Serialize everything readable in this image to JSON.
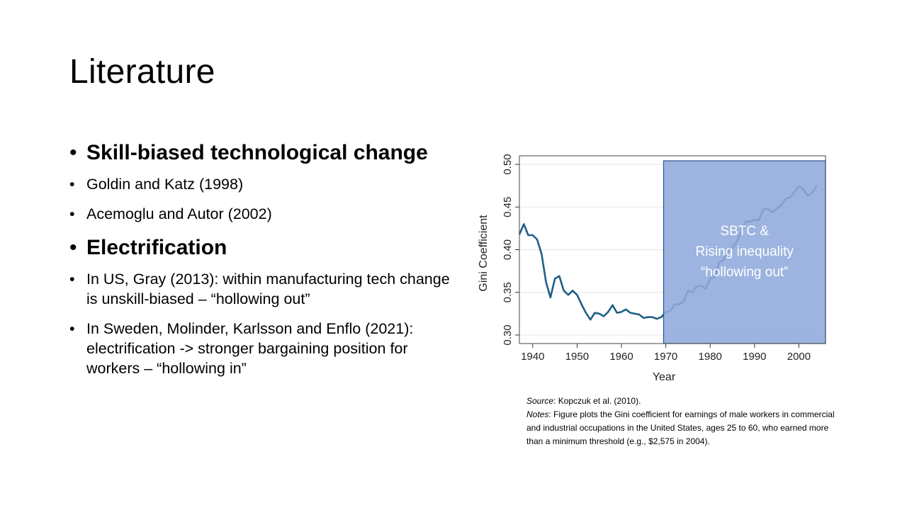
{
  "slide": {
    "title": "Literature",
    "bullets": [
      {
        "level": "big",
        "text": "Skill-biased technological change"
      },
      {
        "level": "small",
        "text": "Goldin and Katz (1998)"
      },
      {
        "level": "small",
        "text": "Acemoglu and Autor (2002)"
      },
      {
        "level": "big",
        "text": "Electrification"
      },
      {
        "level": "small",
        "text": "In US, Gray (2013): within manufacturing tech change is unskill-biased – “hollowing out”"
      },
      {
        "level": "small",
        "text": "In Sweden, Molinder, Karlsson and Enflo (2021): electrification -> stronger bargaining position for workers – “hollowing in”"
      }
    ],
    "source_label": "Source",
    "source_text": ": Kopczuk et al. (2010).",
    "notes_label": "Notes",
    "notes_text": ": Figure plots the Gini coefficient for earnings of male workers in commercial and industrial occupations in the United States, ages 25 to 60, who earned more than a minimum threshold (e.g., $2,575 in 2004)."
  },
  "chart_data": {
    "type": "line",
    "xlabel": "Year",
    "ylabel": "Gini Coefficient",
    "xlim": [
      1937,
      2006
    ],
    "ylim": [
      0.29,
      0.51
    ],
    "xticks": [
      1940,
      1950,
      1960,
      1970,
      1980,
      1990,
      2000
    ],
    "yticks": [
      0.3,
      0.35,
      0.4,
      0.45,
      0.5
    ],
    "grid": "horizontal",
    "line_color": "#1f5f87",
    "highlight": {
      "x_start": 1969.5,
      "x_end": 2006,
      "color": "#8faadc",
      "label_lines": [
        "SBTC &",
        "Rising inequality",
        "“hollowing out”"
      ]
    },
    "x": [
      1937,
      1938,
      1939,
      1940,
      1941,
      1942,
      1943,
      1944,
      1945,
      1946,
      1947,
      1948,
      1949,
      1950,
      1951,
      1952,
      1953,
      1954,
      1955,
      1956,
      1957,
      1958,
      1959,
      1960,
      1961,
      1962,
      1963,
      1964,
      1965,
      1966,
      1967,
      1968,
      1969,
      1970,
      1971,
      1972,
      1973,
      1974,
      1975,
      1976,
      1977,
      1978,
      1979,
      1980,
      1981,
      1982,
      1983,
      1984,
      1985,
      1986,
      1987,
      1988,
      1989,
      1990,
      1991,
      1992,
      1993,
      1994,
      1995,
      1996,
      1997,
      1998,
      1999,
      2000,
      2001,
      2002,
      2003,
      2004
    ],
    "y": [
      0.418,
      0.43,
      0.417,
      0.417,
      0.412,
      0.395,
      0.362,
      0.344,
      0.366,
      0.369,
      0.352,
      0.347,
      0.352,
      0.347,
      0.336,
      0.326,
      0.318,
      0.326,
      0.325,
      0.322,
      0.327,
      0.335,
      0.326,
      0.327,
      0.33,
      0.326,
      0.325,
      0.324,
      0.32,
      0.321,
      0.321,
      0.319,
      0.321,
      0.327,
      0.328,
      0.336,
      0.336,
      0.339,
      0.352,
      0.35,
      0.357,
      0.358,
      0.354,
      0.366,
      0.368,
      0.385,
      0.388,
      0.398,
      0.402,
      0.41,
      0.42,
      0.433,
      0.433,
      0.435,
      0.435,
      0.447,
      0.448,
      0.444,
      0.448,
      0.452,
      0.46,
      0.461,
      0.468,
      0.474,
      0.471,
      0.463,
      0.467,
      0.475
    ]
  }
}
